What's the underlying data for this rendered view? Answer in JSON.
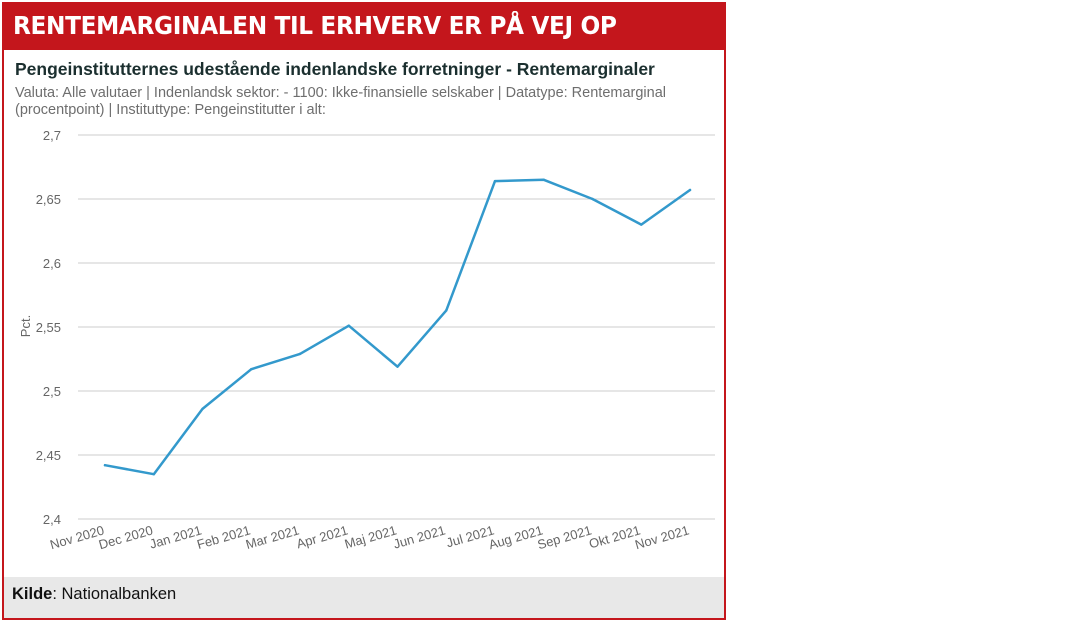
{
  "banner": {
    "title": "RENTEMARGINALEN TIL ERHVERV ER PÅ VEJ OP"
  },
  "source": {
    "label": "Kilde",
    "separator": ": ",
    "text": "Nationalbanken"
  },
  "colors": {
    "banner": "#c4161c",
    "line": "#3399cc",
    "grid": "#cccccc",
    "footer": "#e8e8e8"
  },
  "chart_data": {
    "type": "line",
    "title": "Pengeinstitutternes udestående indenlandske forretninger - Rentemarginaler",
    "subtitle": "Valuta: Alle valutaer | Indenlandsk sektor: - 1100: Ikke-finansielle selskaber | Datatype: Rentemarginal (procentpoint) | Instituttype: Pengeinstitutter i alt:",
    "xlabel": "",
    "ylabel": "Pct.",
    "ylim": [
      2.4,
      2.7
    ],
    "yticks": [
      "2,4",
      "2,45",
      "2,5",
      "2,55",
      "2,6",
      "2,65",
      "2,7"
    ],
    "grid": true,
    "categories": [
      "Nov 2020",
      "Dec 2020",
      "Jan 2021",
      "Feb 2021",
      "Mar 2021",
      "Apr 2021",
      "Maj 2021",
      "Jun 2021",
      "Jul 2021",
      "Aug 2021",
      "Sep 2021",
      "Okt 2021",
      "Nov 2021"
    ],
    "series": [
      {
        "values": [
          2.442,
          2.435,
          2.486,
          2.517,
          2.529,
          2.551,
          2.519,
          2.563,
          2.664,
          2.665,
          2.65,
          2.63,
          2.657
        ]
      }
    ]
  }
}
